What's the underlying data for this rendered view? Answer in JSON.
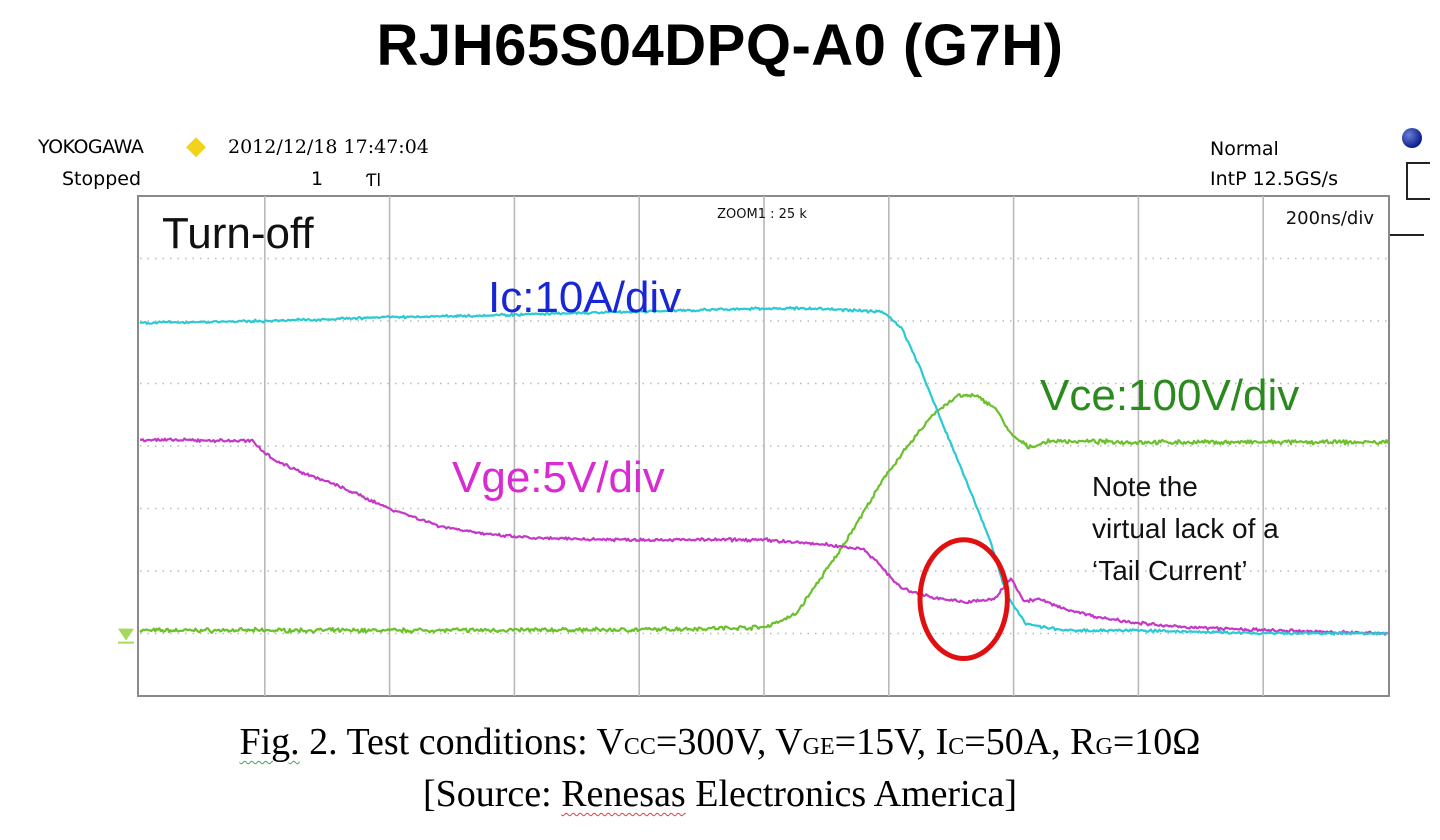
{
  "title": "RJH65S04DPQ-A0 (G7H)",
  "scope": {
    "brand": "YOKOGAWA",
    "datetime": "2012/12/18 17:47:04",
    "status": "Stopped",
    "trigger_count": "1",
    "trigger_symbol": "Ƭl",
    "acq_mode": "Normal",
    "sample_rate": "IntP 12.5GS/s",
    "zoom": "ZOOM1 : 25 k",
    "timebase": "200ns/div",
    "colors": {
      "led": "#0c1d8f",
      "diamond": "#f2d21b",
      "grid": "#b9b9b9"
    }
  },
  "chart_data": {
    "type": "line",
    "title": "Turn-off",
    "xlabel": "",
    "ylabel": "",
    "x_unit": "div",
    "y_unit": "div",
    "xlim": [
      0,
      10
    ],
    "ylim": [
      0,
      8
    ],
    "grid": true,
    "x_divisions": 10,
    "y_divisions": 8,
    "series": [
      {
        "name": "Ic:10A/div",
        "color": "#2bc9d2",
        "noise": 0.025,
        "x": [
          0,
          1,
          2,
          3,
          4,
          5,
          5.4,
          5.95,
          6.1,
          6.25,
          6.4,
          6.6,
          6.8,
          6.95,
          7.1,
          7.4,
          8,
          9,
          10
        ],
        "y": [
          5.97,
          6.0,
          6.06,
          6.1,
          6.15,
          6.2,
          6.2,
          6.15,
          5.9,
          5.25,
          4.5,
          3.55,
          2.55,
          1.6,
          1.15,
          1.05,
          1.05,
          1.0,
          1.0
        ]
      },
      {
        "name": "Vce:100V/div",
        "color": "#6cc02c",
        "noise": 0.04,
        "x": [
          0,
          2,
          4,
          5,
          5.25,
          5.6,
          6.0,
          6.35,
          6.55,
          6.7,
          6.85,
          6.98,
          7.12,
          7.3,
          8,
          9,
          10
        ],
        "y": [
          1.05,
          1.05,
          1.06,
          1.1,
          1.3,
          2.3,
          3.6,
          4.5,
          4.8,
          4.8,
          4.62,
          4.18,
          3.98,
          4.08,
          4.06,
          4.06,
          4.06
        ]
      },
      {
        "name": "Vge:5V/div",
        "color": "#c438c8",
        "noise": 0.03,
        "x": [
          0,
          0.9,
          1.0,
          1.1,
          1.3,
          1.6,
          2.0,
          2.4,
          2.8,
          3.2,
          4.0,
          5.0,
          5.5,
          5.8,
          5.95,
          6.1,
          6.3,
          6.6,
          6.85,
          6.98,
          7.08,
          7.2,
          7.4,
          7.7,
          8.2,
          9,
          10
        ],
        "y": [
          4.1,
          4.08,
          3.9,
          3.75,
          3.58,
          3.35,
          3.0,
          2.72,
          2.58,
          2.52,
          2.5,
          2.5,
          2.42,
          2.35,
          2.05,
          1.72,
          1.6,
          1.5,
          1.55,
          1.9,
          1.52,
          1.55,
          1.4,
          1.25,
          1.12,
          1.05,
          1.0
        ]
      }
    ],
    "annotations": [
      {
        "text": "Note the"
      },
      {
        "text": "virtual lack of a"
      },
      {
        "text": "‘Tail Current’"
      }
    ],
    "highlight": {
      "shape": "ellipse",
      "color": "#e01010",
      "cx": 6.6,
      "cy": 1.55,
      "rx": 0.35,
      "ry": 0.95
    },
    "ground_marker": {
      "color": "#a6d860",
      "y": 0.95
    }
  },
  "caption": {
    "fig_label": "Fig.",
    "line1_after_label": " 2. Test conditions: V",
    "vcc_sub": "CC",
    "vcc_value": "=300V, V",
    "vge_sub": "GE",
    "vge_value": "=15V, I",
    "ic_sub": "C",
    "ic_value": "=50A, R",
    "rg_sub": "G",
    "rg_value": "=10Ω",
    "source_open": "[Source: ",
    "source_name": "Renesas",
    "source_rest": " Electronics America]"
  }
}
